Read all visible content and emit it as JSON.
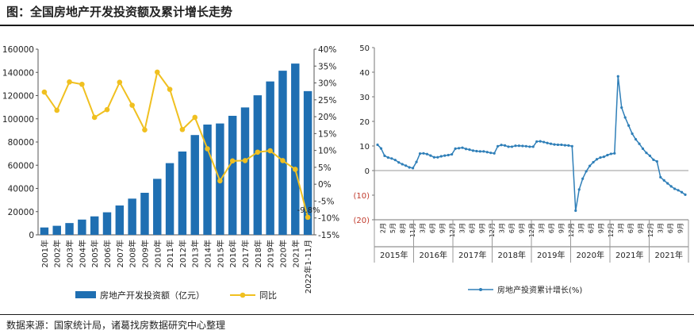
{
  "title": "图：全国房地产开发投资额及累计增长走势",
  "source": "数据来源：国家统计局，诸葛找房数据研究中心整理",
  "colors": {
    "bar": "#1f6fb2",
    "yoy_line": "#f0c020",
    "right_line": "#2f7fb8",
    "neg_label": "#c0392b"
  },
  "chart_data": [
    {
      "type": "bar",
      "categories": [
        "2001年",
        "2002年",
        "2003年",
        "2004年",
        "2005年",
        "2006年",
        "2007年",
        "2008年",
        "2009年",
        "2010年",
        "2011年",
        "2012年",
        "2013年",
        "2014年",
        "2015年",
        "2016年",
        "2017年",
        "2018年",
        "2019年",
        "2020年",
        "2021年",
        "2022年1-11月"
      ],
      "series": [
        {
          "name": "房地产开发投资额（亿元）",
          "values": [
            6344,
            7791,
            10154,
            13158,
            15909,
            19423,
            25289,
            31203,
            36232,
            48259,
            61797,
            71804,
            86013,
            95036,
            95979,
            102581,
            109799,
            120264,
            132194,
            141443,
            147602,
            123863
          ]
        },
        {
          "name": "同比",
          "type": "line",
          "axis": "right",
          "values": [
            27.3,
            21.9,
            30.3,
            29.6,
            19.8,
            22.1,
            30.2,
            23.4,
            16.1,
            33.2,
            28.1,
            16.2,
            19.8,
            10.5,
            1.0,
            6.9,
            7.0,
            9.5,
            9.9,
            7.0,
            4.4,
            -9.8
          ]
        }
      ],
      "yticks_left": [
        "0",
        "20000",
        "40000",
        "60000",
        "80000",
        "100000",
        "120000",
        "140000",
        "160000"
      ],
      "yticks_right": [
        "-15%",
        "-10%",
        "-5%",
        "0%",
        "5%",
        "10%",
        "15%",
        "20%",
        "25%",
        "30%",
        "35%",
        "40%"
      ],
      "ylim_left": [
        0,
        160000
      ],
      "ylim_right": [
        -15,
        40
      ],
      "annotation": "-9.8%",
      "legend": [
        "房地产开发投资额（亿元）",
        "同比"
      ],
      "legend_position": "bottom"
    },
    {
      "type": "line",
      "series": [
        {
          "name": "房地产投资累计增长(%)",
          "values": [
            10.5,
            9.0,
            6.0,
            5.3,
            4.9,
            4.3,
            3.3,
            2.6,
            2.0,
            1.3,
            1.0,
            3.5,
            6.9,
            7.0,
            6.7,
            6.1,
            5.4,
            5.4,
            5.8,
            6.1,
            6.3,
            6.6,
            8.9,
            9.1,
            9.3,
            8.8,
            8.5,
            8.1,
            7.9,
            7.8,
            7.8,
            7.5,
            7.2,
            7.0,
            9.9,
            10.4,
            10.2,
            9.7,
            9.7,
            10.1,
            10.1,
            10.0,
            9.9,
            9.7,
            9.7,
            11.8,
            11.9,
            11.6,
            11.2,
            10.9,
            10.6,
            10.5,
            10.5,
            10.3,
            10.2,
            9.9,
            -16.3,
            -7.7,
            -3.3,
            -0.3,
            1.9,
            3.4,
            4.6,
            5.3,
            5.6,
            6.3,
            6.8,
            7.0,
            38.3,
            25.6,
            21.6,
            18.3,
            15.0,
            12.7,
            10.9,
            8.9,
            7.2,
            6.0,
            4.4,
            3.7,
            -2.7,
            -4.0,
            -5.2,
            -6.4,
            -7.4,
            -8.0,
            -8.8,
            -9.8
          ]
        }
      ],
      "yticks": [
        "(20)",
        "(10)",
        "0",
        "10",
        "20",
        "30",
        "40",
        "50"
      ],
      "ylim": [
        -20,
        50
      ],
      "x_year_labels": [
        "2015年",
        "2016年",
        "2017年",
        "2018年",
        "2019年",
        "2020年",
        "2021年",
        "2021年"
      ],
      "x_month_labels": [
        "2月",
        "5月",
        "8月",
        "11月",
        "3月",
        "6月",
        "9月",
        "12月",
        "3月",
        "6月",
        "9月",
        "12月",
        "3月",
        "6月",
        "9月",
        "12月",
        "3月",
        "6月",
        "9月",
        "12月",
        "3月",
        "6月",
        "9月",
        "12月",
        "3月",
        "6月",
        "9月",
        "12月",
        "3月",
        "6月",
        "9月"
      ],
      "legend": [
        "房地产投资累计增长(%)"
      ],
      "legend_position": "bottom"
    }
  ]
}
